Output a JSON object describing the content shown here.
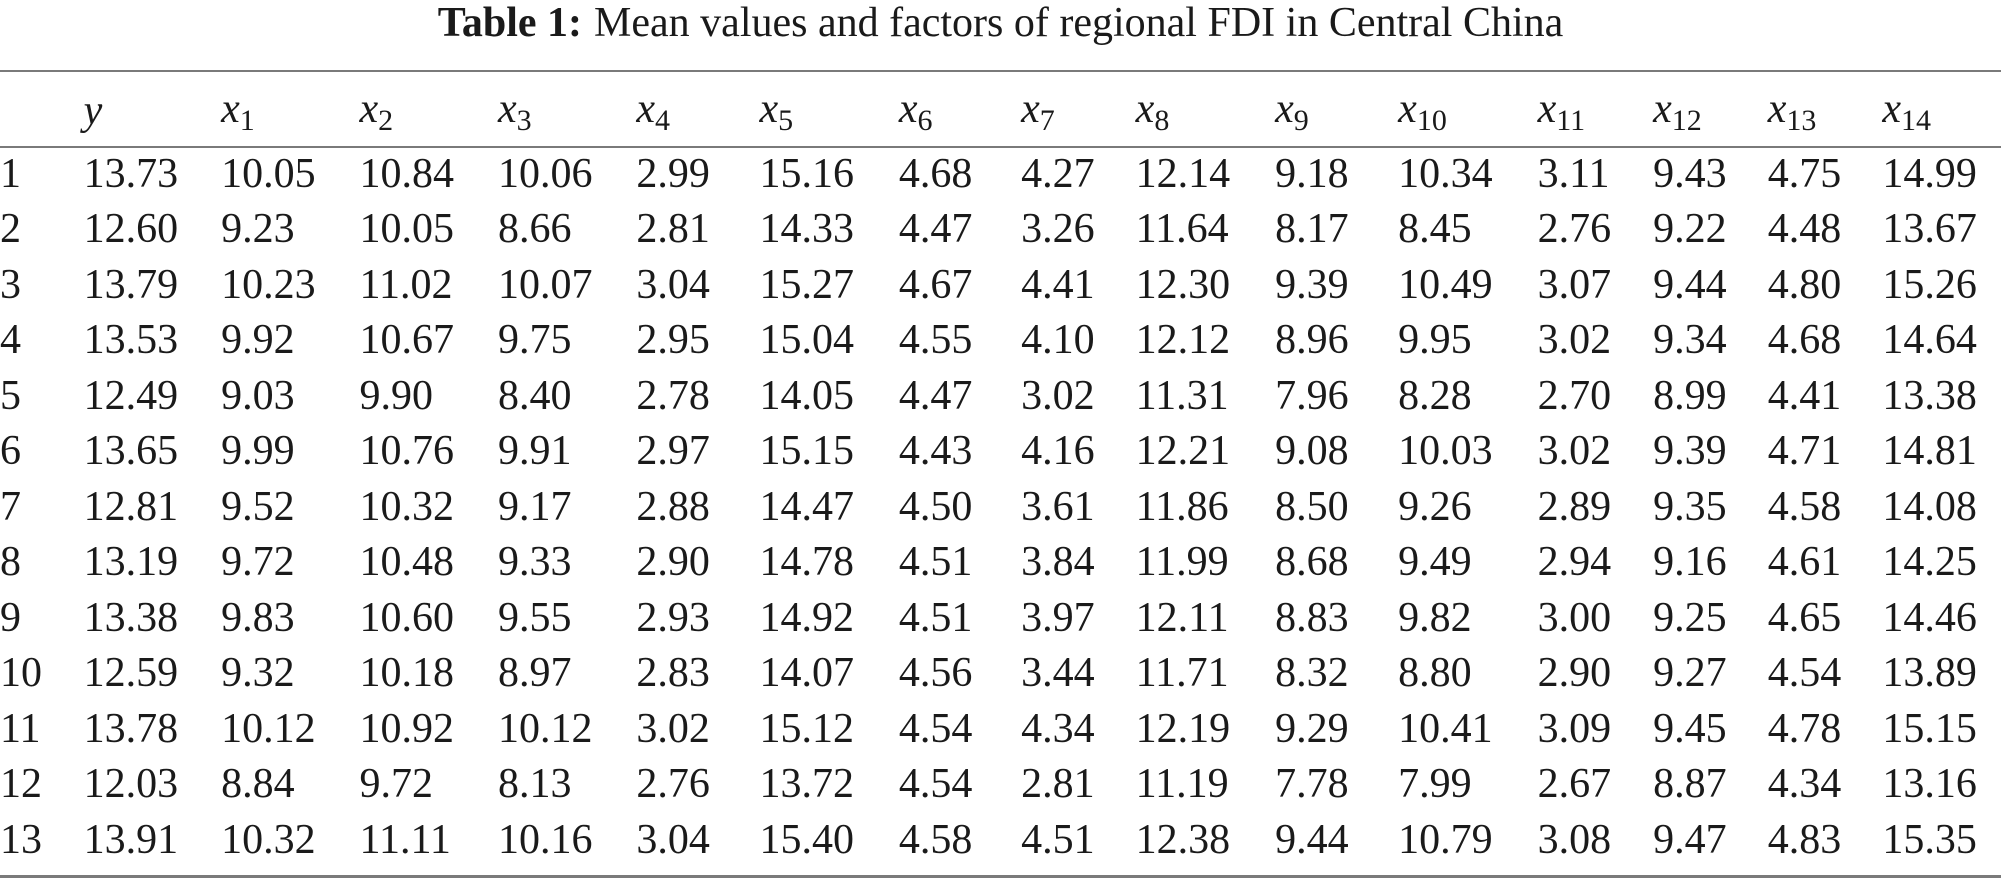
{
  "caption": {
    "label": "Table 1:",
    "text": "Mean values and factors of regional FDI in Central China"
  },
  "header": [
    {
      "base": "",
      "sub": ""
    },
    {
      "base": "y",
      "sub": ""
    },
    {
      "base": "x",
      "sub": "1"
    },
    {
      "base": "x",
      "sub": "2"
    },
    {
      "base": "x",
      "sub": "3"
    },
    {
      "base": "x",
      "sub": "4"
    },
    {
      "base": "x",
      "sub": "5"
    },
    {
      "base": "x",
      "sub": "6"
    },
    {
      "base": "x",
      "sub": "7"
    },
    {
      "base": "x",
      "sub": "8"
    },
    {
      "base": "x",
      "sub": "9"
    },
    {
      "base": "x",
      "sub": "10"
    },
    {
      "base": "x",
      "sub": "11"
    },
    {
      "base": "x",
      "sub": "12"
    },
    {
      "base": "x",
      "sub": "13"
    },
    {
      "base": "x",
      "sub": "14"
    }
  ],
  "rows": [
    [
      "1",
      "13.73",
      "10.05",
      "10.84",
      "10.06",
      "2.99",
      "15.16",
      "4.68",
      "4.27",
      "12.14",
      "9.18",
      "10.34",
      "3.11",
      "9.43",
      "4.75",
      "14.99"
    ],
    [
      "2",
      "12.60",
      "9.23",
      "10.05",
      "8.66",
      "2.81",
      "14.33",
      "4.47",
      "3.26",
      "11.64",
      "8.17",
      "8.45",
      "2.76",
      "9.22",
      "4.48",
      "13.67"
    ],
    [
      "3",
      "13.79",
      "10.23",
      "11.02",
      "10.07",
      "3.04",
      "15.27",
      "4.67",
      "4.41",
      "12.30",
      "9.39",
      "10.49",
      "3.07",
      "9.44",
      "4.80",
      "15.26"
    ],
    [
      "4",
      "13.53",
      "9.92",
      "10.67",
      "9.75",
      "2.95",
      "15.04",
      "4.55",
      "4.10",
      "12.12",
      "8.96",
      "9.95",
      "3.02",
      "9.34",
      "4.68",
      "14.64"
    ],
    [
      "5",
      "12.49",
      "9.03",
      "9.90",
      "8.40",
      "2.78",
      "14.05",
      "4.47",
      "3.02",
      "11.31",
      "7.96",
      "8.28",
      "2.70",
      "8.99",
      "4.41",
      "13.38"
    ],
    [
      "6",
      "13.65",
      "9.99",
      "10.76",
      "9.91",
      "2.97",
      "15.15",
      "4.43",
      "4.16",
      "12.21",
      "9.08",
      "10.03",
      "3.02",
      "9.39",
      "4.71",
      "14.81"
    ],
    [
      "7",
      "12.81",
      "9.52",
      "10.32",
      "9.17",
      "2.88",
      "14.47",
      "4.50",
      "3.61",
      "11.86",
      "8.50",
      "9.26",
      "2.89",
      "9.35",
      "4.58",
      "14.08"
    ],
    [
      "8",
      "13.19",
      "9.72",
      "10.48",
      "9.33",
      "2.90",
      "14.78",
      "4.51",
      "3.84",
      "11.99",
      "8.68",
      "9.49",
      "2.94",
      "9.16",
      "4.61",
      "14.25"
    ],
    [
      "9",
      "13.38",
      "9.83",
      "10.60",
      "9.55",
      "2.93",
      "14.92",
      "4.51",
      "3.97",
      "12.11",
      "8.83",
      "9.82",
      "3.00",
      "9.25",
      "4.65",
      "14.46"
    ],
    [
      "10",
      "12.59",
      "9.32",
      "10.18",
      "8.97",
      "2.83",
      "14.07",
      "4.56",
      "3.44",
      "11.71",
      "8.32",
      "8.80",
      "2.90",
      "9.27",
      "4.54",
      "13.89"
    ],
    [
      "11",
      "13.78",
      "10.12",
      "10.92",
      "10.12",
      "3.02",
      "15.12",
      "4.54",
      "4.34",
      "12.19",
      "9.29",
      "10.41",
      "3.09",
      "9.45",
      "4.78",
      "15.15"
    ],
    [
      "12",
      "12.03",
      "8.84",
      "9.72",
      "8.13",
      "2.76",
      "13.72",
      "4.54",
      "2.81",
      "11.19",
      "7.78",
      "7.99",
      "2.67",
      "8.87",
      "4.34",
      "13.16"
    ],
    [
      "13",
      "13.91",
      "10.32",
      "11.11",
      "10.16",
      "3.04",
      "15.40",
      "4.58",
      "4.51",
      "12.38",
      "9.44",
      "10.79",
      "3.08",
      "9.47",
      "4.83",
      "15.35"
    ]
  ]
}
